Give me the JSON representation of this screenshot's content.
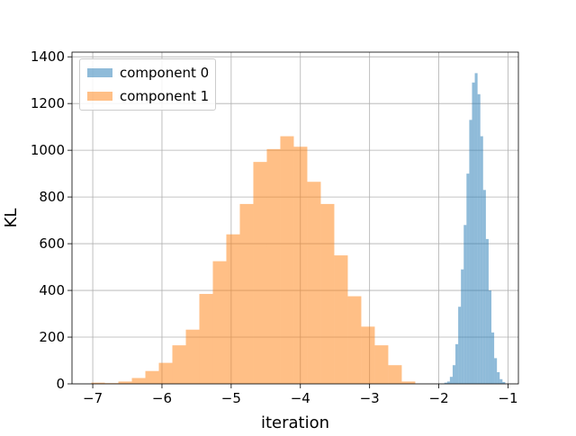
{
  "chart_data": {
    "type": "bar",
    "title": "",
    "xlabel": "iteration",
    "ylabel": "KL",
    "xlim": [
      -7.3,
      -0.85
    ],
    "ylim": [
      0,
      1420
    ],
    "grid": true,
    "legend_position": "top-left",
    "x_ticks": [
      -7,
      -6,
      -5,
      -4,
      -3,
      -2,
      -1
    ],
    "x_tick_labels": [
      "−7",
      "−6",
      "−5",
      "−4",
      "−3",
      "−2",
      "−1"
    ],
    "y_ticks": [
      0,
      200,
      400,
      600,
      800,
      1000,
      1200,
      1400
    ],
    "y_tick_labels": [
      "0",
      "200",
      "400",
      "600",
      "800",
      "1000",
      "1200",
      "1400"
    ],
    "series": [
      {
        "name": "component 0",
        "color": "#1f77b4",
        "opacity": 0.5,
        "bin_width": 0.04,
        "bins": [
          [
            -1.92,
            5
          ],
          [
            -1.88,
            10
          ],
          [
            -1.84,
            30
          ],
          [
            -1.8,
            80
          ],
          [
            -1.76,
            170
          ],
          [
            -1.72,
            330
          ],
          [
            -1.68,
            490
          ],
          [
            -1.64,
            680
          ],
          [
            -1.6,
            900
          ],
          [
            -1.56,
            1130
          ],
          [
            -1.52,
            1290
          ],
          [
            -1.48,
            1330
          ],
          [
            -1.44,
            1240
          ],
          [
            -1.4,
            1060
          ],
          [
            -1.36,
            830
          ],
          [
            -1.32,
            620
          ],
          [
            -1.28,
            400
          ],
          [
            -1.24,
            220
          ],
          [
            -1.2,
            110
          ],
          [
            -1.16,
            50
          ],
          [
            -1.12,
            20
          ],
          [
            -1.08,
            8
          ]
        ]
      },
      {
        "name": "component 1",
        "color": "#ff7f0e",
        "opacity": 0.5,
        "bin_width": 0.195,
        "bins": [
          [
            -7.02,
            5
          ],
          [
            -6.825,
            3
          ],
          [
            -6.63,
            10
          ],
          [
            -6.435,
            25
          ],
          [
            -6.24,
            55
          ],
          [
            -6.045,
            90
          ],
          [
            -5.85,
            165
          ],
          [
            -5.655,
            232
          ],
          [
            -5.46,
            385
          ],
          [
            -5.265,
            525
          ],
          [
            -5.07,
            640
          ],
          [
            -4.875,
            770
          ],
          [
            -4.68,
            950
          ],
          [
            -4.485,
            1005
          ],
          [
            -4.29,
            1060
          ],
          [
            -4.095,
            1015
          ],
          [
            -3.9,
            865
          ],
          [
            -3.705,
            770
          ],
          [
            -3.51,
            550
          ],
          [
            -3.315,
            375
          ],
          [
            -3.12,
            245
          ],
          [
            -2.925,
            165
          ],
          [
            -2.73,
            80
          ],
          [
            -2.535,
            10
          ]
        ]
      }
    ]
  }
}
